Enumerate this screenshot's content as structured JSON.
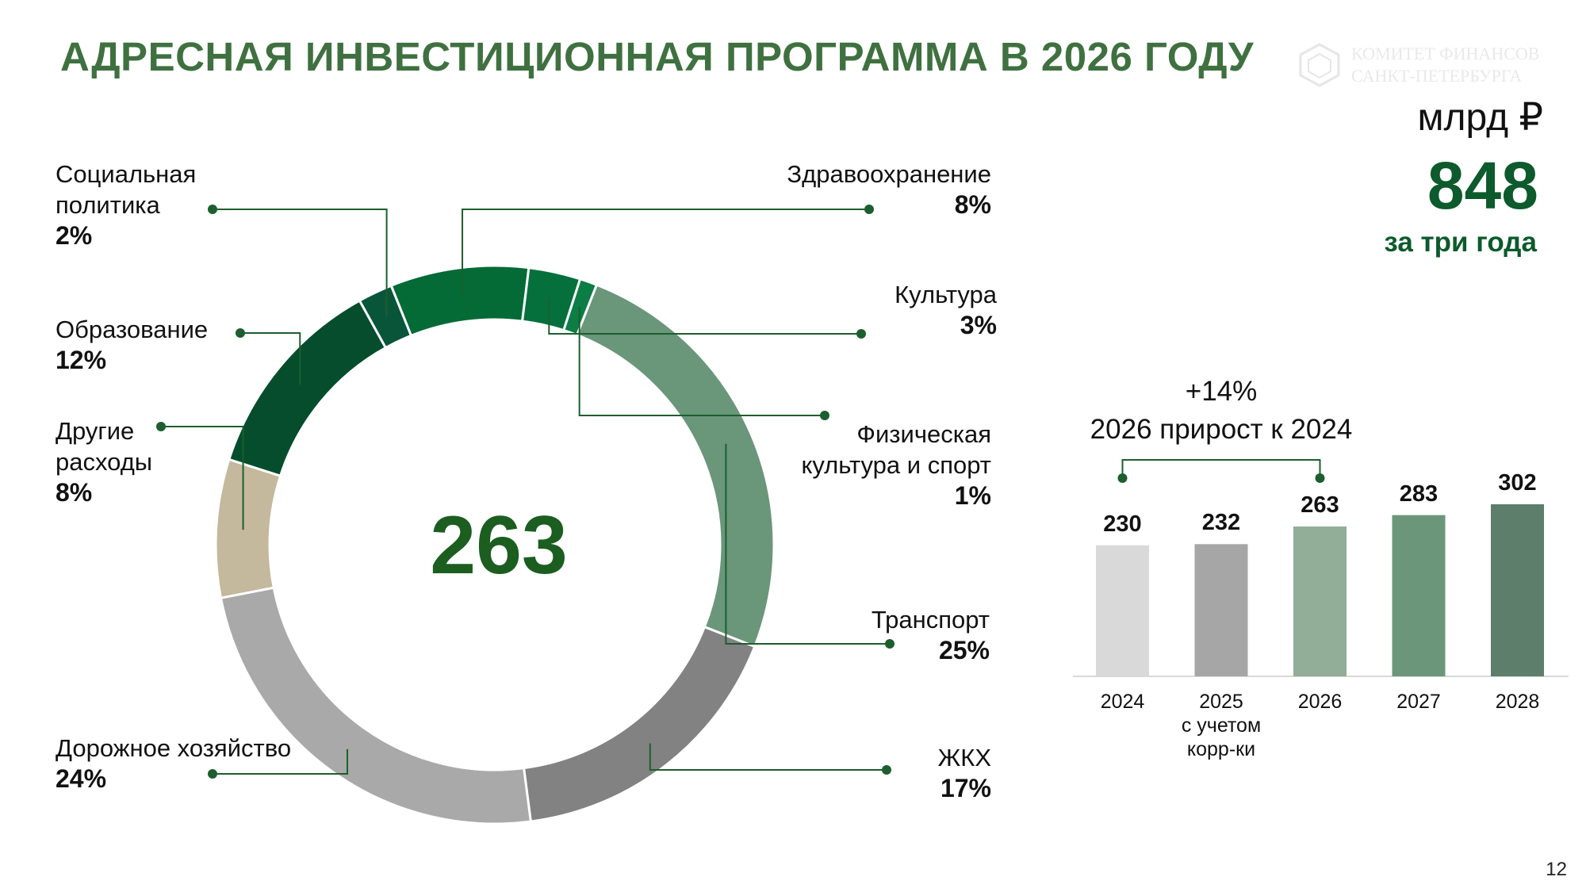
{
  "title": "АДРЕСНАЯ ИНВЕСТИЦИОННАЯ ПРОГРАММА В 2026 ГОДУ",
  "watermark": {
    "line1": "КОМИТЕТ ФИНАНСОВ",
    "line2": "САНКТ-ПЕТЕРБУРГА",
    "color": "#e9e9e9"
  },
  "summary": {
    "unit": "млрд ₽",
    "total": "848",
    "total_caption": "за три года"
  },
  "growth_note": {
    "line1": "+14%",
    "line2": "2026 прирост к 2024"
  },
  "page_number": "12",
  "colors": {
    "title": "#3f7140",
    "accent": "#0d5a2c"
  },
  "chart_data": [
    {
      "type": "pie",
      "center_value": "263",
      "segments": [
        {
          "name": "Социальная политика",
          "name_lines": [
            "Социальная",
            "политика"
          ],
          "value": 2,
          "label": "2%",
          "color": "#08553a"
        },
        {
          "name": "Здравоохранение",
          "name_lines": [
            "Здравоохранение"
          ],
          "value": 8,
          "label": "8%",
          "color": "#046a36"
        },
        {
          "name": "Культура",
          "name_lines": [
            "Культура"
          ],
          "value": 3,
          "label": "3%",
          "color": "#05703c"
        },
        {
          "name": "Физическая культура и спорт",
          "name_lines": [
            "Физическая",
            "культура и спорт"
          ],
          "value": 1,
          "label": "1%",
          "color": "#0b7d45"
        },
        {
          "name": "Транспорт",
          "name_lines": [
            "Транспорт"
          ],
          "value": 25,
          "label": "25%",
          "color": "#6a967a"
        },
        {
          "name": "ЖКХ",
          "name_lines": [
            "ЖКХ"
          ],
          "value": 17,
          "label": "17%",
          "color": "#828282"
        },
        {
          "name": "Дорожное хозяйство",
          "name_lines": [
            "Дорожное хозяйство"
          ],
          "value": 24,
          "label": "24%",
          "color": "#a9a9a9"
        },
        {
          "name": "Другие расходы",
          "name_lines": [
            "Другие",
            "расходы"
          ],
          "value": 8,
          "label": "8%",
          "color": "#c4b89d"
        },
        {
          "name": "Образование",
          "name_lines": [
            "Образование"
          ],
          "value": 12,
          "label": "12%",
          "color": "#054d2c"
        }
      ]
    },
    {
      "type": "bar",
      "categories": [
        [
          "2024"
        ],
        [
          "2025",
          "с учетом",
          "корр-ки"
        ],
        [
          "2026"
        ],
        [
          "2027"
        ],
        [
          "2028"
        ]
      ],
      "values": [
        230,
        232,
        263,
        283,
        302
      ],
      "value_labels": [
        "230",
        "232",
        "263",
        "283",
        "302"
      ],
      "colors": [
        "#d9d9d9",
        "#a6a6a6",
        "#92ad98",
        "#6c9679",
        "#5c7e6a"
      ],
      "ylim": [
        0,
        302
      ]
    }
  ]
}
